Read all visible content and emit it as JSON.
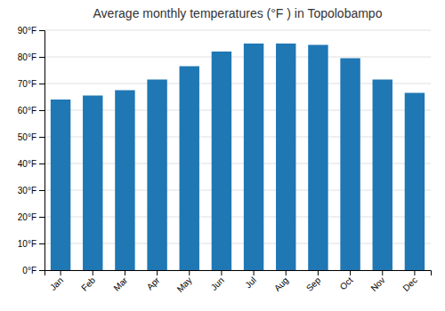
{
  "chart_data": {
    "type": "bar",
    "title": "Average monthly temperatures (°F ) in Topolobampo",
    "categories": [
      "Jan",
      "Feb",
      "Mar",
      "Apr",
      "May",
      "Jun",
      "Jul",
      "Aug",
      "Sep",
      "Oct",
      "Nov",
      "Dec"
    ],
    "values": [
      64,
      65.5,
      67.5,
      71.5,
      76.5,
      82,
      85,
      85,
      84.5,
      79.5,
      71.5,
      66.5
    ],
    "ylim": [
      0,
      90
    ],
    "yticks": [
      {
        "value": 0,
        "label": "0°F"
      },
      {
        "value": 10,
        "label": "10°F"
      },
      {
        "value": 20,
        "label": "20°F"
      },
      {
        "value": 30,
        "label": "30°F"
      },
      {
        "value": 40,
        "label": "40°F"
      },
      {
        "value": 50,
        "label": "50°F"
      },
      {
        "value": 60,
        "label": "60°F"
      },
      {
        "value": 70,
        "label": "70°F"
      },
      {
        "value": 80,
        "label": "80°F"
      },
      {
        "value": 90,
        "label": "90°F"
      }
    ],
    "grid": true
  }
}
